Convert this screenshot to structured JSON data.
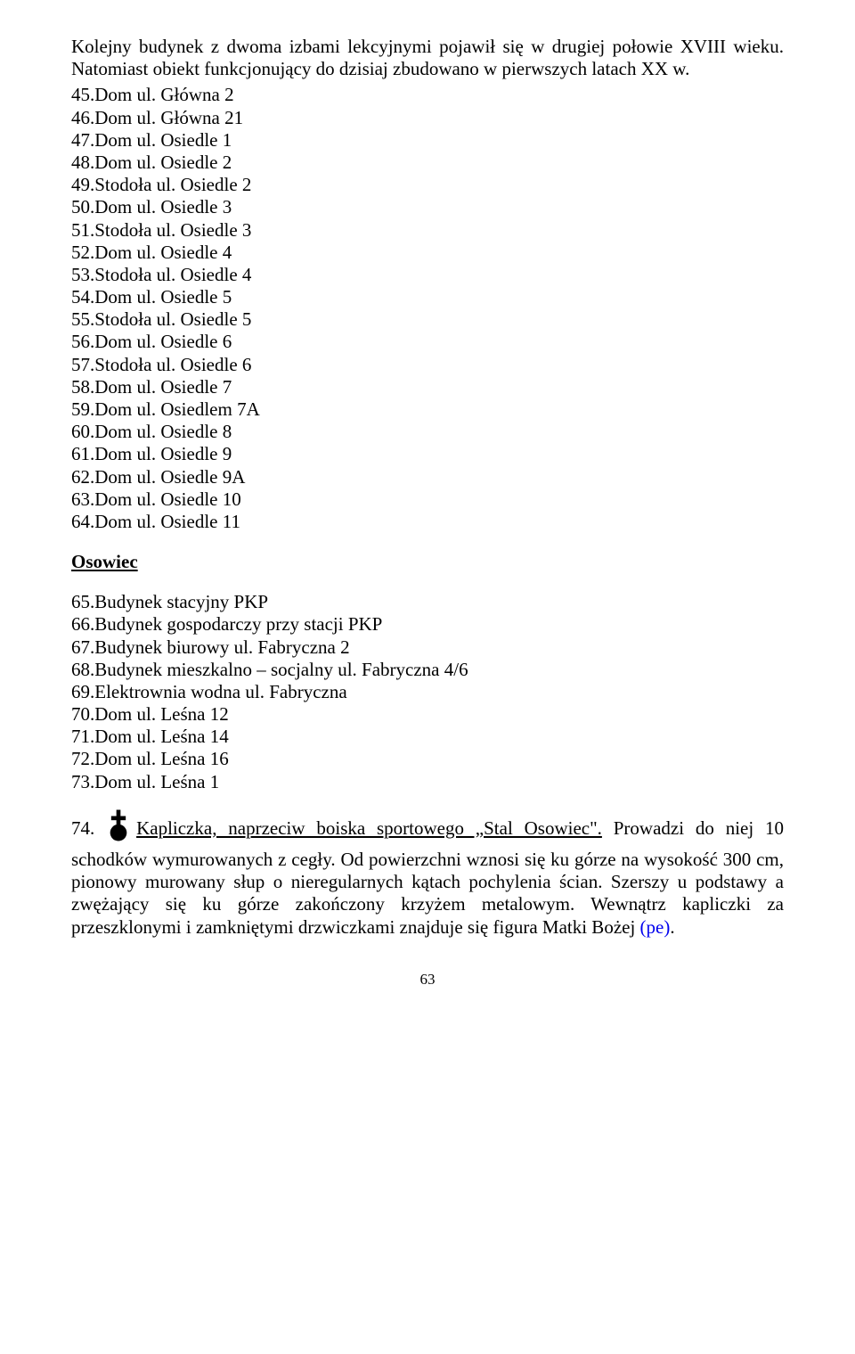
{
  "intro": "Kolejny budynek z dwoma izbami lekcyjnymi pojawił się w drugiej połowie XVIII wieku. Natomiast obiekt funkcjonujący do dzisiaj zbudowano w pierwszych latach XX w.",
  "list1": [
    "45.Dom ul. Główna 2",
    "46.Dom ul. Główna 21",
    "47.Dom ul. Osiedle 1",
    "48.Dom ul. Osiedle 2",
    "49.Stodoła ul. Osiedle 2",
    "50.Dom ul. Osiedle 3",
    "51.Stodoła ul. Osiedle 3",
    "52.Dom ul. Osiedle 4",
    "53.Stodoła ul. Osiedle 4",
    "54.Dom ul. Osiedle 5",
    "55.Stodoła ul. Osiedle 5",
    "56.Dom ul. Osiedle 6",
    "57.Stodoła ul. Osiedle 6",
    "58.Dom ul. Osiedle 7",
    "59.Dom ul. Osiedlem 7A",
    "60.Dom ul. Osiedle 8",
    "61.Dom ul. Osiedle 9",
    "62.Dom ul. Osiedle 9A",
    "63.Dom ul. Osiedle 10",
    "64.Dom ul. Osiedle 11"
  ],
  "heading": "Osowiec",
  "list2": [
    "65.Budynek stacyjny PKP",
    "66.Budynek gospodarczy przy stacji PKP",
    "67.Budynek biurowy ul. Fabryczna 2",
    "68.Budynek mieszkalno – socjalny ul. Fabryczna 4/6",
    "69.Elektrownia wodna ul. Fabryczna",
    "70.Dom ul. Leśna 12",
    "71.Dom ul. Leśna 14",
    "72.Dom ul. Leśna 16",
    "73.Dom ul. Leśna 1"
  ],
  "para74": {
    "num": "74.",
    "underlined": "Kapliczka, naprzeciw boiska sportowego „Stal Osowiec\".",
    "rest": " Prowadzi do niej 10 schodków wymurowanych z cegły. Od powierzchni wznosi się ku górze na wysokość 300 cm, pionowy murowany słup o nieregularnych kątach pochylenia ścian. Szerszy u podstawy a zwężający się ku górze zakończony krzyżem metalowym. Wewnątrz kapliczki za przeszklonymi i zamkniętymi drzwiczkami znajduje się figura Matki Bożej ",
    "link": "(pe)",
    "tail": "."
  },
  "icon": {
    "fill": "#000000",
    "size": 36
  },
  "page_number": "63"
}
